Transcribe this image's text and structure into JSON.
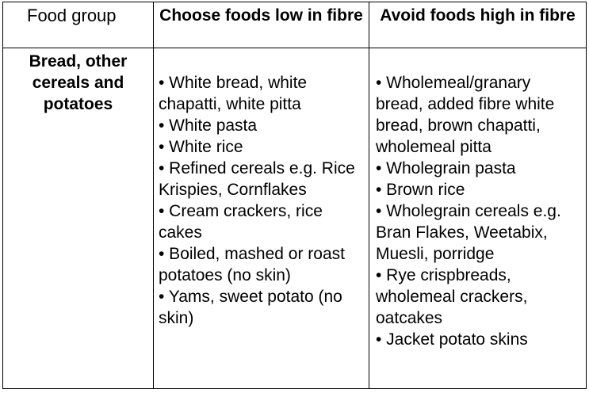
{
  "table": {
    "headers": {
      "food_group": "Food group",
      "choose_low": "Choose foods low in fibre",
      "avoid_high": "Avoid foods high in fibre"
    },
    "rows": [
      {
        "food_group": "Bread, other cereals and potatoes",
        "choose_low_items": [
          "• White bread, white chapatti, white pitta",
          "• White pasta",
          "• White rice",
          "• Refined cereals e.g. Rice Krispies, Cornflakes",
          "• Cream crackers, rice cakes",
          "• Boiled, mashed or roast potatoes (no skin)",
          "• Yams, sweet potato (no skin)"
        ],
        "avoid_high_items": [
          "• Wholemeal/granary bread, added fibre white bread, brown chapatti, wholemeal pitta",
          "• Wholegrain pasta",
          "• Brown rice",
          "• Wholegrain cereals e.g. Bran Flakes, Weetabix, Muesli, porridge",
          "• Rye crispbreads, wholemeal crackers, oatcakes",
          "• Jacket potato skins"
        ]
      }
    ]
  }
}
